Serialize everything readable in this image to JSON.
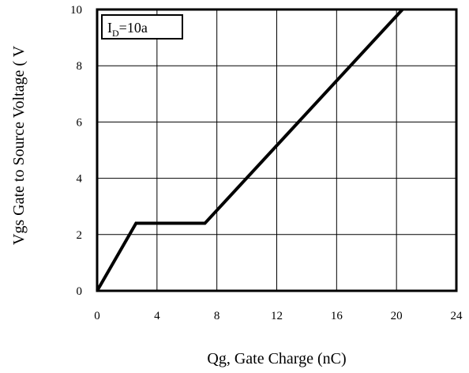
{
  "chart_data": {
    "type": "line",
    "xlabel": "Qg, Gate Charge (nC)",
    "ylabel": "Vgs Gate to Source Voltage ( V",
    "xlim": [
      0,
      24
    ],
    "ylim": [
      0,
      10
    ],
    "xticks": [
      "0",
      "4",
      "8",
      "12",
      "16",
      "20",
      "24"
    ],
    "yticks": [
      "0",
      "2",
      "4",
      "6",
      "8",
      "10"
    ],
    "grid": true,
    "annotation": {
      "main": "I",
      "sub": "D",
      "rest": "=10a"
    },
    "series": [
      {
        "color": "#000000",
        "x": [
          0,
          2.6,
          7.2,
          20.4
        ],
        "y": [
          0,
          2.4,
          2.4,
          10
        ]
      }
    ]
  }
}
